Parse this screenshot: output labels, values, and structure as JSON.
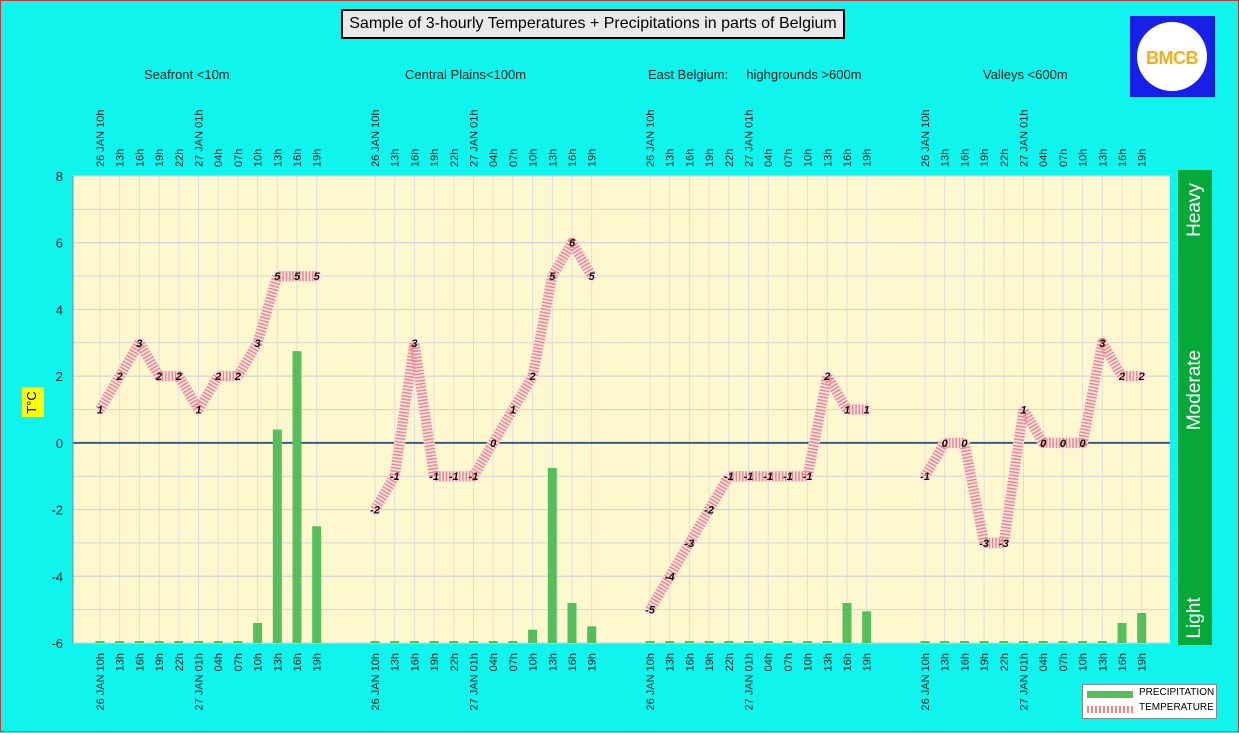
{
  "title": "Sample of 3-hourly Temperatures + Precipitations in parts of Belgium",
  "regions": [
    "Seafront <10m",
    "Central Plains<100m",
    "East Belgium:     highgrounds >600m",
    "Valleys <600m"
  ],
  "logo": {
    "text": "BMCB"
  },
  "ylabel": "T°C",
  "intensity_labels": {
    "heavy": "Heavy",
    "moderate": "Moderate",
    "light": "Light"
  },
  "legend": {
    "precipitation": "PRECIPITATION",
    "temperature": "TEMPERATURE"
  },
  "colors": {
    "background": "#0ff5ee",
    "plot": "#fff8cf",
    "precip": "#56bf5c",
    "temp_line": "#e88a8a",
    "zero_line": "#3a5a8a",
    "intensity": "#06a83a"
  },
  "chart_data": {
    "type": "bar+line",
    "y_ticks": [
      "8",
      "6",
      "4",
      "2",
      "0",
      "-2",
      "-4",
      "-6"
    ],
    "ylim": [
      -6,
      8
    ],
    "categories": [
      "26 JAN 10h",
      "13h",
      "16h",
      "19h",
      "22h",
      "27 JAN 01h",
      "04h",
      "07h",
      "10h",
      "13h",
      "16h",
      "19h"
    ],
    "temperature_series": [
      {
        "region": "Seafront <10m",
        "values": [
          1,
          2,
          3,
          2,
          2,
          1,
          2,
          2,
          3,
          5,
          5,
          5
        ]
      },
      {
        "region": "Central Plains<100m",
        "values": [
          -2,
          -1,
          3,
          -1,
          -1,
          -1,
          0,
          1,
          2,
          5,
          6,
          5
        ]
      },
      {
        "region": "East Belgium: highgrounds >600m",
        "values": [
          -5,
          -4,
          -3,
          -2,
          -1,
          -1,
          -1,
          -1,
          -1,
          2,
          1,
          1
        ]
      },
      {
        "region": "Valleys <600m",
        "values": [
          -1,
          0,
          0,
          -3,
          -3,
          1,
          0,
          0,
          0,
          3,
          2,
          2
        ]
      }
    ],
    "precipitation_series": [
      {
        "region": "Seafront <10m",
        "values": [
          -6,
          -6,
          -6,
          -6,
          -6,
          -6,
          -6,
          -6,
          -5.4,
          0.4,
          2.75,
          -2.5
        ]
      },
      {
        "region": "Central Plains<100m",
        "values": [
          -6,
          -6,
          -6,
          -6,
          -6,
          -6,
          -6,
          -6,
          -5.6,
          -0.75,
          -4.8,
          -5.5
        ]
      },
      {
        "region": "East Belgium: highgrounds >600m",
        "values": [
          -6,
          -6,
          -6,
          -6,
          -6,
          -6,
          -6,
          -6,
          -6,
          -6,
          -4.8,
          -5.05
        ]
      },
      {
        "region": "Valleys <600m",
        "values": [
          -6,
          -6,
          -6,
          -6,
          -6,
          -6,
          -6,
          -6,
          -6,
          -6,
          -5.4,
          -5.1
        ]
      }
    ],
    "grid": true
  }
}
